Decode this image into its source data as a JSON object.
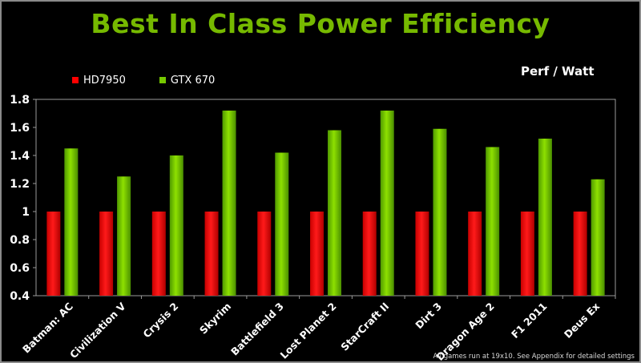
{
  "title": "Best In Class Power Efficiency",
  "subtitle": "Perf / Watt",
  "footnote": "All games run at 19x10. See Appendix for detailed  settings",
  "colors": {
    "title": "#76b900",
    "hd7950": "#ff0000",
    "gtx670": "#76c800",
    "plot_border": "#9a9a9a",
    "text": "#ffffff"
  },
  "chart_data": {
    "type": "bar",
    "title": "Best In Class Power Efficiency",
    "ylabel": "Perf / Watt",
    "xlabel": "",
    "ylim": [
      0.4,
      1.8
    ],
    "yticks": [
      "0.4",
      "0.6",
      "0.8",
      "1",
      "1.2",
      "1.4",
      "1.6",
      "1.8"
    ],
    "grid": false,
    "legend_position": "top-left",
    "categories": [
      "Batman: AC",
      "Civilization V",
      "Crysis 2",
      "Skyrim",
      "Battlefield 3",
      "Lost Planet 2",
      "StarCraft II",
      "Dirt 3",
      "Dragon Age 2",
      "F1 2011",
      "Deus Ex"
    ],
    "series": [
      {
        "name": "HD7950",
        "values": [
          1,
          1,
          1,
          1,
          1,
          1,
          1,
          1,
          1,
          1,
          1
        ]
      },
      {
        "name": "GTX 670",
        "values": [
          1.45,
          1.25,
          1.4,
          1.72,
          1.42,
          1.58,
          1.72,
          1.59,
          1.46,
          1.52,
          1.23
        ]
      }
    ]
  }
}
